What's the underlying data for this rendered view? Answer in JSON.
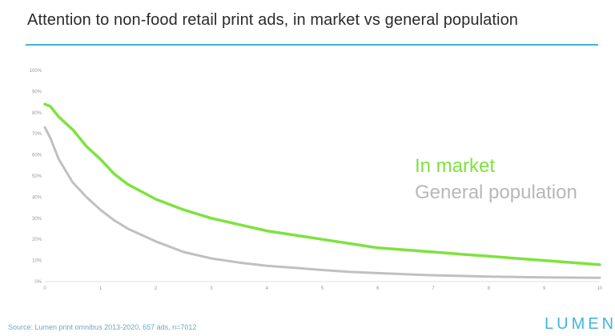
{
  "header": {
    "title": "Attention to non-food retail print ads, in market vs general population"
  },
  "chart_data": {
    "type": "line",
    "x": [
      0,
      0.1,
      0.25,
      0.5,
      0.75,
      1,
      1.25,
      1.5,
      2,
      2.5,
      3,
      3.5,
      4,
      4.5,
      5,
      5.5,
      6,
      6.5,
      7,
      7.5,
      8,
      8.5,
      9,
      9.5,
      10
    ],
    "series": [
      {
        "name": "In market",
        "color": "#7ee23f",
        "values": [
          84,
          83,
          78,
          72,
          64,
          58,
          51,
          46,
          39,
          34,
          30,
          27,
          24,
          22,
          20,
          18,
          16,
          15,
          14,
          13,
          12,
          11,
          10,
          9,
          8
        ]
      },
      {
        "name": "General population",
        "color": "#c0c0c0",
        "values": [
          73,
          68,
          58,
          47,
          40,
          34,
          29,
          25,
          19,
          14,
          11,
          9,
          7.5,
          6.5,
          5.5,
          4.6,
          4,
          3.5,
          3,
          2.7,
          2.4,
          2.2,
          2,
          1.9,
          1.8
        ]
      }
    ],
    "xticks": [
      "0",
      "1",
      "2",
      "3",
      "4",
      "5",
      "6",
      "7",
      "8",
      "9",
      "10"
    ],
    "yticks": [
      "0%",
      "10%",
      "20%",
      "30%",
      "40%",
      "50%",
      "60%",
      "70%",
      "80%",
      "90%",
      "100%"
    ],
    "xlim": [
      0,
      10
    ],
    "ylim": [
      0,
      100
    ],
    "grid": false,
    "legend_position": "right"
  },
  "footer": {
    "source": "Source: Lumen print omnibus 2013-2020, 657 ads, n=7012",
    "logo": "LUMEN"
  }
}
